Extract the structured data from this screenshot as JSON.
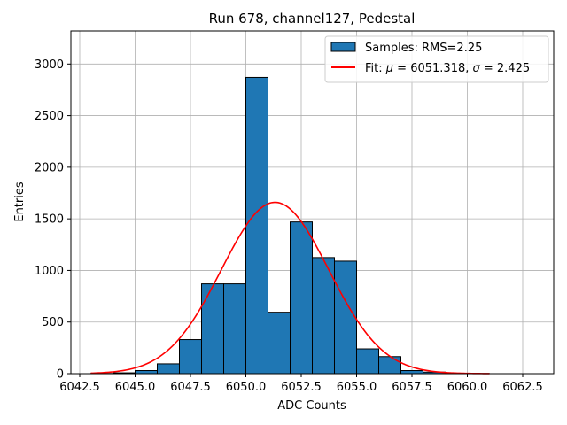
{
  "chart_data": {
    "type": "bar",
    "title": "Run 678, channel127, Pedestal",
    "xlabel": "ADC Counts",
    "ylabel": "Entries",
    "xlim": [
      6042.1,
      6063.9
    ],
    "ylim": [
      0,
      3320
    ],
    "xticks": [
      6042.5,
      6045.0,
      6047.5,
      6050.0,
      6052.5,
      6055.0,
      6057.5,
      6060.0,
      6062.5
    ],
    "xtick_labels": [
      "6042.5",
      "6045.0",
      "6047.5",
      "6050.0",
      "6052.5",
      "6055.0",
      "6057.5",
      "6060.0",
      "6062.5"
    ],
    "yticks": [
      0,
      500,
      1000,
      1500,
      2000,
      2500,
      3000
    ],
    "ytick_labels": [
      "0",
      "500",
      "1000",
      "1500",
      "2000",
      "2500",
      "3000"
    ],
    "grid": true,
    "legend_position": "top-right",
    "histogram": {
      "name": "Samples: RMS=2.25",
      "color": "#1f77b4",
      "edge_color": "#000000",
      "bin_edges": [
        6043.0,
        6044.0,
        6045.0,
        6046.0,
        6047.0,
        6048.0,
        6049.0,
        6050.0,
        6051.0,
        6052.0,
        6053.0,
        6054.0,
        6055.0,
        6056.0,
        6057.0,
        6058.0,
        6059.0,
        6060.0,
        6061.0
      ],
      "counts": [
        2,
        8,
        30,
        95,
        330,
        870,
        870,
        2870,
        595,
        1470,
        1125,
        1090,
        240,
        165,
        30,
        15,
        3,
        1
      ]
    },
    "fit": {
      "name": "Fit: μ = 6051.318, σ = 2.425",
      "label_parts": {
        "prefix": "Fit: ",
        "mu_symbol": "μ",
        "mu_text": " = 6051.318, ",
        "sigma_symbol": "σ",
        "sigma_text": " = 2.425"
      },
      "color": "#ff0000",
      "mu": 6051.318,
      "sigma": 2.425,
      "amplitude": 1660,
      "x_range": [
        6043.0,
        6061.0
      ]
    }
  }
}
